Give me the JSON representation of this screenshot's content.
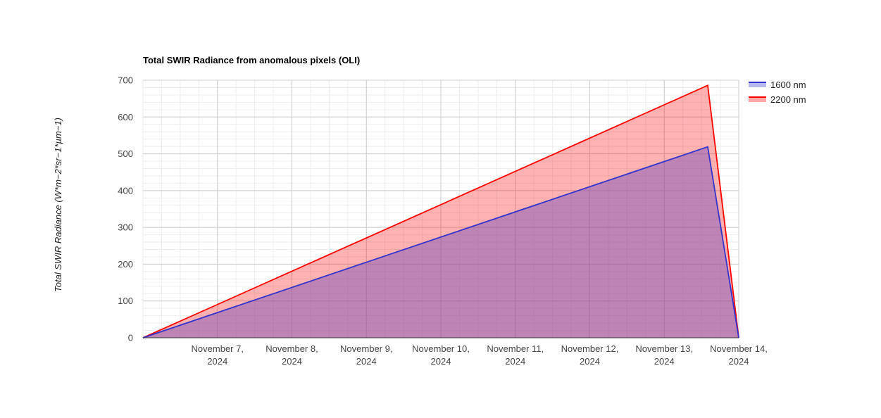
{
  "chart_data": {
    "type": "area",
    "title": "Total SWIR Radiance from anomalous pixels (OLI)",
    "xlabel": "",
    "ylabel": "Total SWIR Radiance (W*m−2*sr−1*µm−1)",
    "x_axis": {
      "type": "date",
      "min": "2024-11-06T00:00",
      "max": "2024-11-14T00:00",
      "tick_labels": [
        {
          "date": "2024-11-07",
          "line1": "November 7,",
          "line2": "2024"
        },
        {
          "date": "2024-11-08",
          "line1": "November 8,",
          "line2": "2024"
        },
        {
          "date": "2024-11-09",
          "line1": "November 9,",
          "line2": "2024"
        },
        {
          "date": "2024-11-10",
          "line1": "November 10,",
          "line2": "2024"
        },
        {
          "date": "2024-11-11",
          "line1": "November 11,",
          "line2": "2024"
        },
        {
          "date": "2024-11-12",
          "line1": "November 12,",
          "line2": "2024"
        },
        {
          "date": "2024-11-13",
          "line1": "November 13,",
          "line2": "2024"
        },
        {
          "date": "2024-11-14",
          "line1": "November 14,",
          "line2": "2024"
        }
      ]
    },
    "ylim": [
      0,
      700
    ],
    "y_ticks": [
      0,
      100,
      200,
      300,
      400,
      500,
      600,
      700
    ],
    "grid": true,
    "minor_grid": true,
    "legend_position": "right",
    "series": [
      {
        "name": "2200 nm",
        "color": "#ff0000",
        "fill": "#ff0000",
        "points": [
          {
            "x": "2024-11-06T00:00",
            "y": 0
          },
          {
            "x": "2024-11-13T14:00",
            "y": 686
          },
          {
            "x": "2024-11-14T00:00",
            "y": 0
          }
        ]
      },
      {
        "name": "1600 nm",
        "color": "#3333cc",
        "fill": "#7e55b8",
        "points": [
          {
            "x": "2024-11-06T00:00",
            "y": 0
          },
          {
            "x": "2024-11-13T14:00",
            "y": 519
          },
          {
            "x": "2024-11-14T00:00",
            "y": 0
          }
        ]
      }
    ],
    "legend": [
      {
        "label": "1600 nm",
        "color": "#3333cc"
      },
      {
        "label": "2200 nm",
        "color": "#ff0000"
      }
    ]
  }
}
